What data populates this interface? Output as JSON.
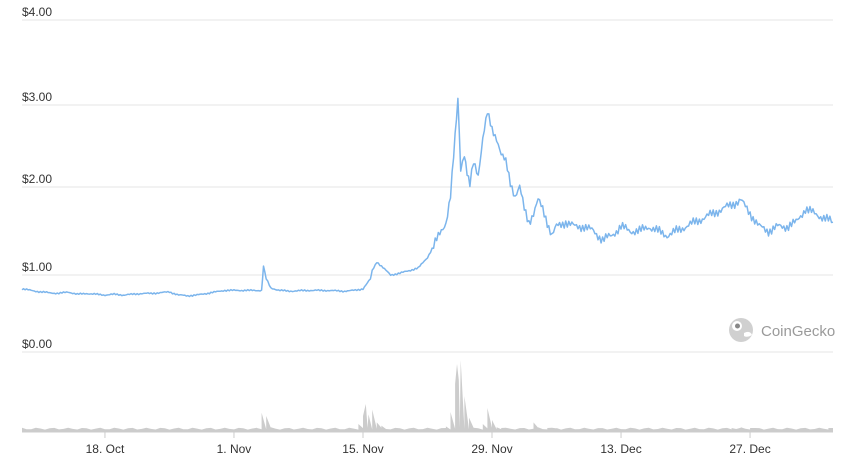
{
  "chart_data": {
    "type": "line",
    "title": "",
    "xlabel": "",
    "ylabel": "",
    "ylim": [
      0,
      4
    ],
    "y_ticks": [
      "$0.00",
      "$1.00",
      "$2.00",
      "$3.00",
      "$4.00"
    ],
    "y_tick_values": [
      0,
      1,
      2,
      3,
      4
    ],
    "x_ticks": [
      "18. Oct",
      "1. Nov",
      "15. Nov",
      "29. Nov",
      "13. Dec",
      "27. Dec"
    ],
    "x_tick_days": [
      18,
      32,
      46,
      60,
      74,
      88
    ],
    "xlim_days": [
      9,
      97
    ],
    "grid": true,
    "legend": "none",
    "line_color": "#7cb5ec",
    "volume_color": "#cccccc",
    "series": [
      {
        "x": [
          9,
          10,
          11,
          12,
          13,
          14,
          15,
          16,
          17,
          18,
          19,
          20,
          21,
          22,
          23,
          24,
          25,
          26,
          27,
          28,
          29,
          30,
          31,
          35,
          35.2,
          35.5,
          36,
          37,
          38,
          40,
          42,
          44,
          45,
          46,
          46.8,
          47,
          47.5,
          48,
          49,
          50,
          51,
          52,
          53,
          54,
          55,
          55.5,
          56,
          56.3,
          56.6,
          57,
          57.3,
          57.6,
          58,
          58.5,
          59,
          59.5,
          60,
          60.5,
          61,
          61.5,
          62,
          62.5,
          63,
          63.5,
          64,
          64.5,
          65,
          65.5,
          66,
          66.5,
          67,
          68,
          69,
          70,
          71,
          72,
          73,
          74,
          75,
          76,
          77,
          78,
          79,
          80,
          81,
          82,
          83,
          84,
          85,
          86,
          87,
          88,
          89,
          90,
          91,
          92,
          93,
          94,
          95,
          96,
          97
        ],
        "y": [
          0.82,
          0.8,
          0.78,
          0.77,
          0.76,
          0.78,
          0.75,
          0.76,
          0.75,
          0.74,
          0.75,
          0.74,
          0.75,
          0.76,
          0.76,
          0.77,
          0.78,
          0.74,
          0.73,
          0.74,
          0.76,
          0.78,
          0.8,
          0.8,
          1.1,
          0.95,
          0.83,
          0.8,
          0.79,
          0.8,
          0.8,
          0.79,
          0.8,
          0.82,
          0.95,
          1.05,
          1.15,
          1.1,
          1.0,
          1.02,
          1.05,
          1.08,
          1.2,
          1.4,
          1.6,
          1.9,
          2.6,
          3.05,
          2.2,
          2.4,
          2.2,
          2.05,
          2.3,
          2.15,
          2.6,
          2.9,
          2.7,
          2.6,
          2.4,
          2.3,
          2.05,
          1.9,
          2.0,
          1.75,
          1.6,
          1.7,
          1.85,
          1.75,
          1.6,
          1.45,
          1.55,
          1.6,
          1.55,
          1.55,
          1.5,
          1.4,
          1.45,
          1.55,
          1.5,
          1.5,
          1.55,
          1.5,
          1.45,
          1.5,
          1.55,
          1.6,
          1.65,
          1.7,
          1.75,
          1.8,
          1.85,
          1.7,
          1.55,
          1.5,
          1.55,
          1.55,
          1.6,
          1.75,
          1.7,
          1.65,
          1.6
        ]
      },
      {
        "x": [
          34.5,
          35,
          35.5,
          36,
          45.5,
          46,
          46.3,
          46.6,
          47,
          47.5,
          48,
          55,
          55.5,
          56,
          56.2,
          56.4,
          56.6,
          57,
          57.5,
          59,
          59.5,
          60,
          60.5,
          61,
          64.5,
          65,
          66,
          67,
          86,
          87,
          88,
          96.5,
          97
        ],
        "y": [
          0.05,
          0.24,
          0.2,
          0.06,
          0.1,
          0.2,
          0.35,
          0.22,
          0.28,
          0.12,
          0.08,
          0.07,
          0.25,
          0.6,
          0.85,
          0.65,
          0.9,
          0.45,
          0.18,
          0.1,
          0.3,
          0.15,
          0.06,
          0.05,
          0.12,
          0.06,
          0.05,
          0.05,
          0.05,
          0.06,
          0.05,
          0.05,
          0.05
        ]
      }
    ]
  },
  "watermark": {
    "text": "CoinGecko",
    "icon": "gecko-icon"
  }
}
